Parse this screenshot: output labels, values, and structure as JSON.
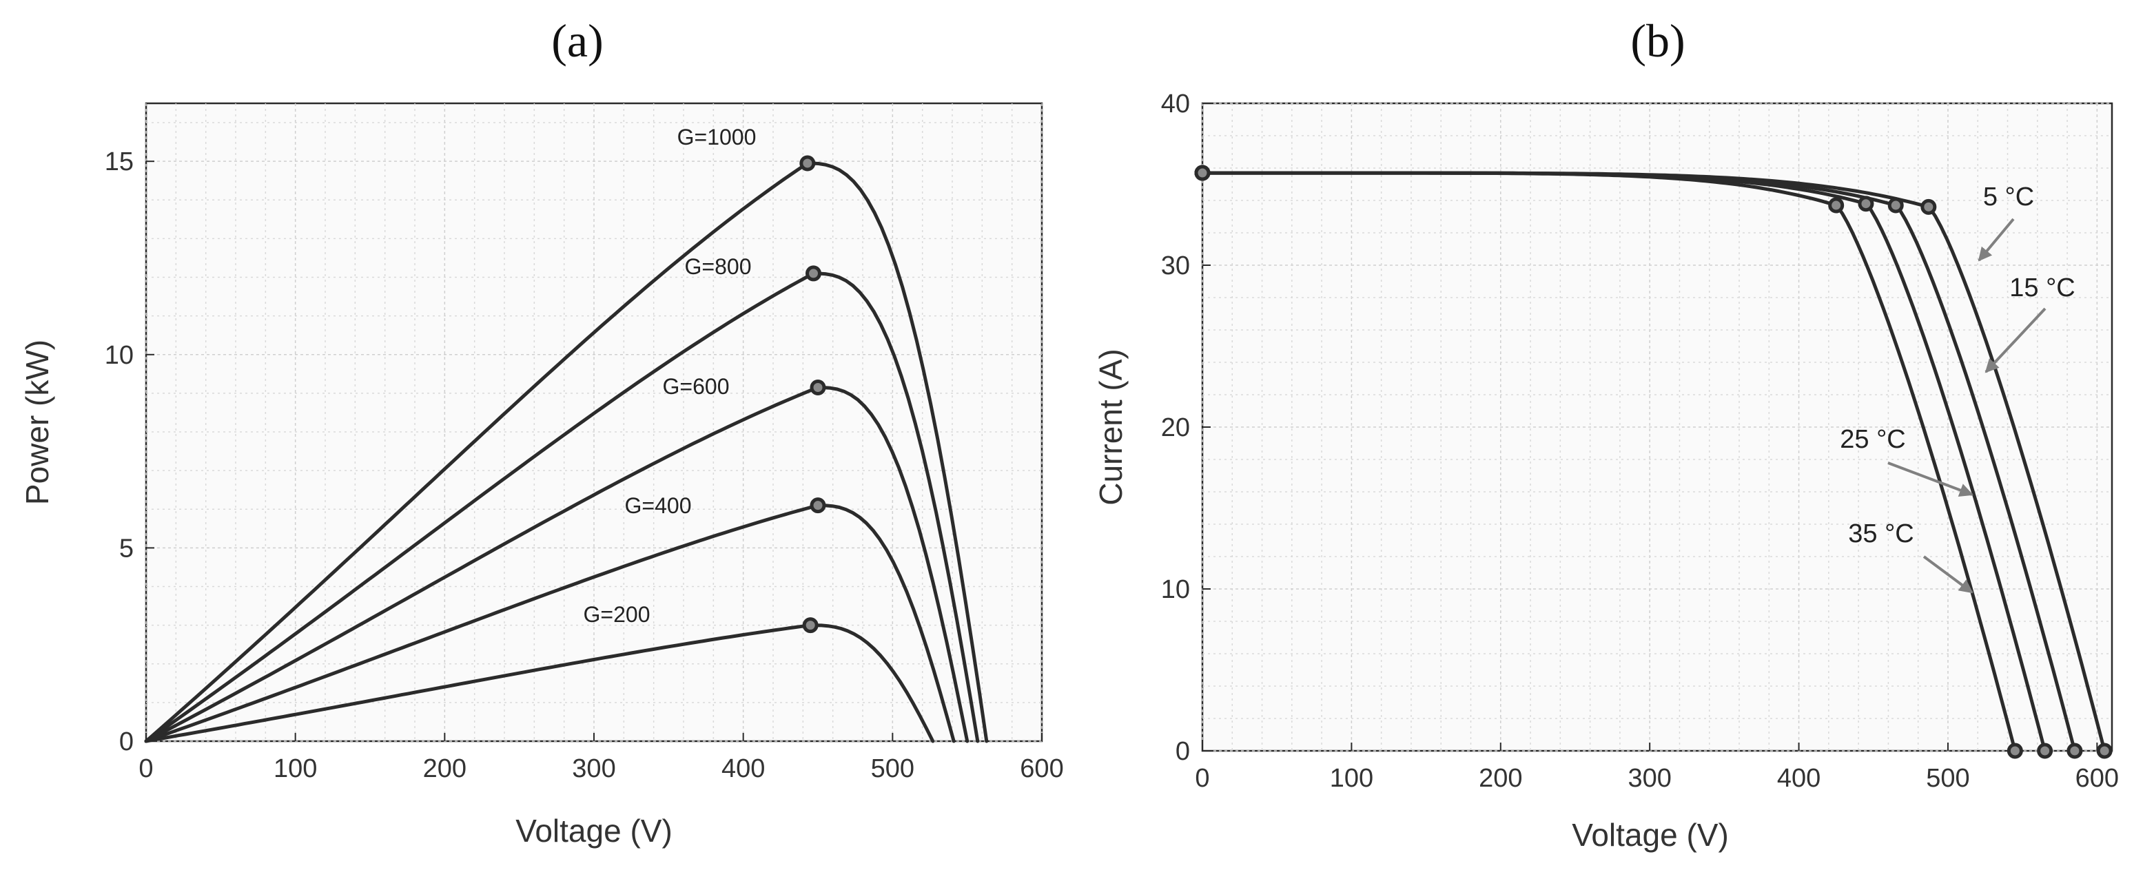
{
  "chart_data": [
    {
      "id": "a",
      "type": "line",
      "title": "(a)",
      "xlabel": "Voltage (V)",
      "ylabel": "Power (kW)",
      "xlim": [
        0,
        600
      ],
      "ylim": [
        0,
        16.5
      ],
      "xticks": [
        0,
        100,
        200,
        300,
        400,
        500,
        600
      ],
      "yticks": [
        0,
        5,
        10,
        15
      ],
      "grid": true,
      "series": [
        {
          "name": "G=1000",
          "mpp": [
            443,
            14.95
          ],
          "voc": 563
        },
        {
          "name": "G=800",
          "mpp": [
            447,
            12.1
          ],
          "voc": 557
        },
        {
          "name": "G=600",
          "mpp": [
            450,
            9.15
          ],
          "voc": 550
        },
        {
          "name": "G=400",
          "mpp": [
            450,
            6.1
          ],
          "voc": 541
        },
        {
          "name": "G=200",
          "mpp": [
            445,
            3.0
          ],
          "voc": 527
        }
      ]
    },
    {
      "id": "b",
      "type": "line",
      "title": "(b)",
      "xlabel": "Voltage (V)",
      "ylabel": "Current (A)",
      "xlim": [
        0,
        610
      ],
      "ylim": [
        0,
        40
      ],
      "xticks": [
        0,
        100,
        200,
        300,
        400,
        500,
        600
      ],
      "yticks": [
        0,
        10,
        20,
        30,
        40
      ],
      "grid": true,
      "isc": 35.7,
      "series": [
        {
          "name": "5 °C",
          "mpp": [
            487,
            33.6
          ],
          "voc": 605
        },
        {
          "name": "15 °C",
          "mpp": [
            465,
            33.7
          ],
          "voc": 585
        },
        {
          "name": "25 °C",
          "mpp": [
            445,
            33.8
          ],
          "voc": 565
        },
        {
          "name": "35 °C",
          "mpp": [
            425,
            33.7
          ],
          "voc": 545
        }
      ]
    }
  ]
}
